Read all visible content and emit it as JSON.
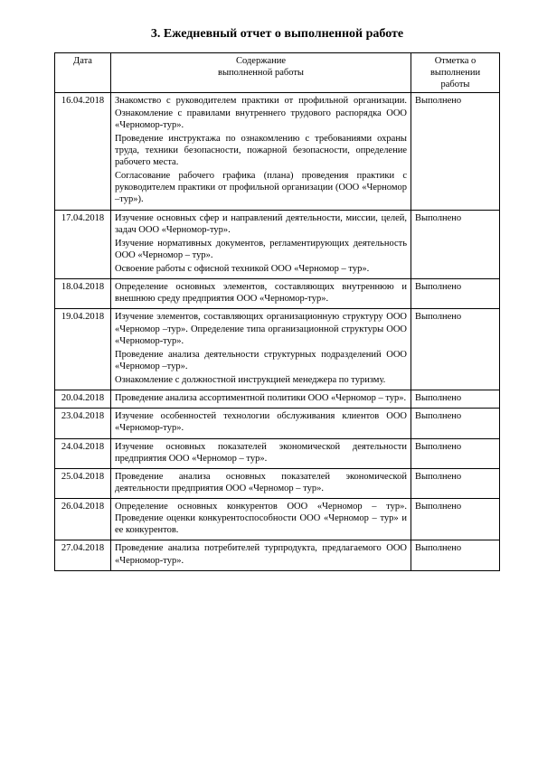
{
  "title": "3. Ежедневный отчет о выполненной работе",
  "columns": {
    "date": "Дата",
    "desc_line1": "Содержание",
    "desc_line2": "выполненной работы",
    "mark_line1": "Отметка о",
    "mark_line2": "выполнении работы"
  },
  "rows": [
    {
      "date": "16.04.2018",
      "paragraphs": [
        "Знакомство с руководителем практики от профильной организации. Ознакомление с правилами внутреннего трудового распорядка ООО «Черномор-тур».",
        "Проведение инструктажа по ознакомлению с требованиями охраны труда, техники безопасности, пожарной безопасности, определение рабочего места.",
        "Согласование рабочего графика (плана) проведения практики с руководителем практики от профильной организации (ООО «Черномор –тур»)."
      ],
      "mark": "Выполнено"
    },
    {
      "date": "17.04.2018",
      "paragraphs": [
        "Изучение основных сфер и направлений деятельности, миссии, целей, задач ООО «Черномор-тур».",
        "Изучение нормативных документов, регламентирующих деятельность ООО «Черномор – тур».",
        "Освоение работы с офисной техникой ООО «Черномор – тур»."
      ],
      "mark": "Выполнено"
    },
    {
      "date": "18.04.2018",
      "paragraphs": [
        "Определение основных элементов, составляющих внутреннюю и внешнюю среду предприятия ООО «Черномор-тур»."
      ],
      "mark": "Выполнено"
    },
    {
      "date": "19.04.2018",
      "paragraphs": [
        "Изучение элементов, составляющих организационную структуру ООО «Черномор –тур». Определение типа организационной структуры ООО «Черномор-тур».",
        "Проведение анализа деятельности структурных подразделений ООО «Черномор –тур».",
        "Ознакомление с должностной инструкцией менеджера по туризму."
      ],
      "mark": "Выполнено"
    },
    {
      "date": "20.04.2018",
      "paragraphs": [
        "Проведение анализа ассортиментной политики ООО «Черномор – тур»."
      ],
      "mark": "Выполнено"
    },
    {
      "date": "23.04.2018",
      "paragraphs": [
        "Изучение особенностей технологии обслуживания клиентов ООО «Черномор-тур»."
      ],
      "mark": "Выполнено"
    },
    {
      "date": "24.04.2018",
      "paragraphs": [
        "Изучение основных показателей экономической деятельности предприятия ООО «Черномор – тур»."
      ],
      "mark": "Выполнено"
    },
    {
      "date": "25.04.2018",
      "paragraphs": [
        "Проведение анализа основных показателей экономической деятельности предприятия ООО «Черномор – тур»."
      ],
      "mark": "Выполнено"
    },
    {
      "date": "26.04.2018",
      "paragraphs": [
        "Определение основных конкурентов ООО «Черномор – тур». Проведение оценки конкурентоспособности ООО «Черномор – тур» и ее конкурентов."
      ],
      "mark": "Выполнено"
    },
    {
      "date": "27.04.2018",
      "paragraphs": [
        "Проведение анализа потребителей турпродукта, предлагаемого ООО «Черномор-тур»."
      ],
      "mark": "Выполнено"
    }
  ]
}
